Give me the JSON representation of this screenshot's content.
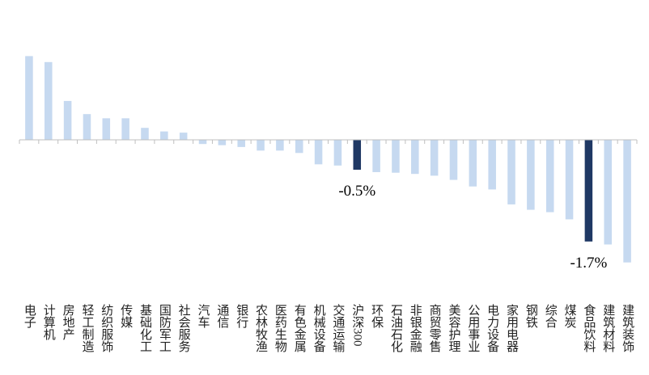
{
  "chart_data": {
    "type": "bar",
    "categories": [
      "电子",
      "计算机",
      "房地产",
      "轻工制造",
      "纺织服饰",
      "传媒",
      "基础化工",
      "国防军工",
      "社会服务",
      "汽车",
      "通信",
      "银行",
      "农林牧渔",
      "医药生物",
      "有色金属",
      "机械设备",
      "交通运输",
      "沪深300",
      "环保",
      "石油石化",
      "非银金融",
      "商贸零售",
      "美容护理",
      "公用事业",
      "电力设备",
      "家用电器",
      "钢铁",
      "综合",
      "煤炭",
      "食品饮料",
      "建筑材料",
      "建筑装饰"
    ],
    "values": [
      1.4,
      1.3,
      0.65,
      0.43,
      0.36,
      0.36,
      0.2,
      0.14,
      0.12,
      -0.07,
      -0.09,
      -0.12,
      -0.18,
      -0.18,
      -0.22,
      -0.41,
      -0.43,
      -0.5,
      -0.54,
      -0.55,
      -0.57,
      -0.6,
      -0.67,
      -0.78,
      -0.83,
      -1.08,
      -1.17,
      -1.21,
      -1.33,
      -1.7,
      -1.75,
      -2.05
    ],
    "value_labels": [
      null,
      null,
      null,
      null,
      null,
      null,
      null,
      null,
      null,
      null,
      null,
      null,
      null,
      null,
      null,
      null,
      null,
      "-0.5%",
      null,
      null,
      null,
      null,
      null,
      null,
      null,
      null,
      null,
      null,
      null,
      "-1.7%",
      null,
      null
    ],
    "colors": [
      "#c6d9f0",
      "#c6d9f0",
      "#c6d9f0",
      "#c6d9f0",
      "#c6d9f0",
      "#c6d9f0",
      "#c6d9f0",
      "#c6d9f0",
      "#c6d9f0",
      "#c6d9f0",
      "#c6d9f0",
      "#c6d9f0",
      "#c6d9f0",
      "#c6d9f0",
      "#c6d9f0",
      "#c6d9f0",
      "#c6d9f0",
      "#1f3864",
      "#c6d9f0",
      "#c6d9f0",
      "#c6d9f0",
      "#c6d9f0",
      "#c6d9f0",
      "#c6d9f0",
      "#c6d9f0",
      "#c6d9f0",
      "#c6d9f0",
      "#c6d9f0",
      "#c6d9f0",
      "#1f3864",
      "#c6d9f0",
      "#c6d9f0"
    ],
    "ylim": [
      -2.5,
      2.0
    ]
  }
}
